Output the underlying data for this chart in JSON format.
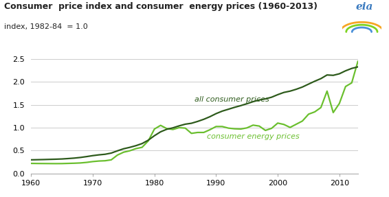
{
  "title": "Consumer  price index and consumer  energy prices (1960-2013)",
  "subtitle": "index, 1982-84  = 1.0",
  "all_consumer_prices": {
    "years": [
      1960,
      1961,
      1962,
      1963,
      1964,
      1965,
      1966,
      1967,
      1968,
      1969,
      1970,
      1971,
      1972,
      1973,
      1974,
      1975,
      1976,
      1977,
      1978,
      1979,
      1980,
      1981,
      1982,
      1983,
      1984,
      1985,
      1986,
      1987,
      1988,
      1989,
      1990,
      1991,
      1992,
      1993,
      1994,
      1995,
      1996,
      1997,
      1998,
      1999,
      2000,
      2001,
      2002,
      2003,
      2004,
      2005,
      2006,
      2007,
      2008,
      2009,
      2010,
      2011,
      2012,
      2013
    ],
    "values": [
      0.296,
      0.299,
      0.302,
      0.306,
      0.31,
      0.315,
      0.324,
      0.334,
      0.348,
      0.367,
      0.388,
      0.405,
      0.418,
      0.444,
      0.493,
      0.538,
      0.569,
      0.606,
      0.652,
      0.726,
      0.824,
      0.909,
      0.965,
      0.996,
      1.039,
      1.076,
      1.096,
      1.136,
      1.183,
      1.24,
      1.307,
      1.362,
      1.403,
      1.445,
      1.482,
      1.524,
      1.569,
      1.605,
      1.63,
      1.666,
      1.722,
      1.771,
      1.799,
      1.84,
      1.889,
      1.953,
      2.016,
      2.073,
      2.153,
      2.145,
      2.179,
      2.244,
      2.296,
      2.33
    ]
  },
  "consumer_energy_prices": {
    "years": [
      1960,
      1961,
      1962,
      1963,
      1964,
      1965,
      1966,
      1967,
      1968,
      1969,
      1970,
      1971,
      1972,
      1973,
      1974,
      1975,
      1976,
      1977,
      1978,
      1979,
      1980,
      1981,
      1982,
      1983,
      1984,
      1985,
      1986,
      1987,
      1988,
      1989,
      1990,
      1991,
      1992,
      1993,
      1994,
      1995,
      1996,
      1997,
      1998,
      1999,
      2000,
      2001,
      2002,
      2003,
      2004,
      2005,
      2006,
      2007,
      2008,
      2009,
      2010,
      2011,
      2012,
      2013
    ],
    "values": [
      0.218,
      0.216,
      0.215,
      0.214,
      0.213,
      0.214,
      0.218,
      0.222,
      0.228,
      0.24,
      0.258,
      0.27,
      0.276,
      0.296,
      0.4,
      0.463,
      0.494,
      0.541,
      0.57,
      0.71,
      0.97,
      1.05,
      0.98,
      0.96,
      1.0,
      0.99,
      0.875,
      0.895,
      0.895,
      0.955,
      1.025,
      1.025,
      0.99,
      0.975,
      0.97,
      0.995,
      1.055,
      1.035,
      0.94,
      0.985,
      1.1,
      1.07,
      1.005,
      1.075,
      1.145,
      1.295,
      1.345,
      1.44,
      1.8,
      1.33,
      1.53,
      1.9,
      1.98,
      2.45
    ]
  },
  "color_all": "#2d5a1b",
  "color_energy": "#6abf2e",
  "label_all": "all consumer prices",
  "label_energy": "consumer energy prices",
  "xlim": [
    1960,
    2013
  ],
  "ylim": [
    0.0,
    2.5
  ],
  "yticks": [
    0.0,
    0.5,
    1.0,
    1.5,
    2.0,
    2.5
  ],
  "xticks": [
    1960,
    1970,
    1980,
    1990,
    2000,
    2010
  ],
  "eia_text": "eia",
  "eia_text_color": "#3a7abf",
  "background_color": "#ffffff",
  "grid_color": "#cccccc",
  "title_fontsize": 9,
  "subtitle_fontsize": 8,
  "tick_fontsize": 8,
  "label_fontsize": 8
}
